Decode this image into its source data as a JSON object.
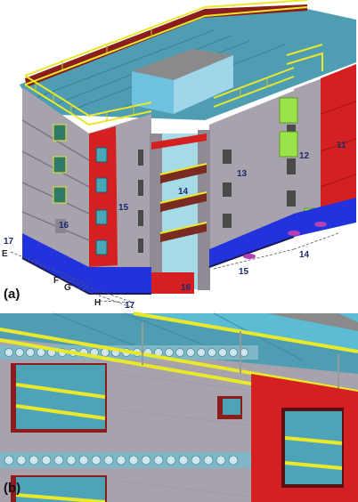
{
  "panels": {
    "a": {
      "label": "(a)"
    },
    "b": {
      "label": "(b)"
    }
  },
  "callouts": {
    "c11": "11",
    "c12": "12",
    "c13": "13",
    "c14a": "14",
    "c14b": "14",
    "c15a": "15",
    "c15b": "15",
    "c16a": "16",
    "c16b": "16",
    "c17a": "17",
    "c17b": "17",
    "cE": "E",
    "cF": "F",
    "cG": "G",
    "cH": "H"
  },
  "colors": {
    "facade_grey": "#a7a2ab",
    "roof_cyan": "#4f9db3",
    "column_red": "#d42020",
    "base_blue": "#2233dd",
    "railing_yellow": "#e9e92a",
    "balcony_brown": "#7a2a20",
    "stair_green": "#9be34a",
    "glass_cyan": "#5bbcd3"
  }
}
